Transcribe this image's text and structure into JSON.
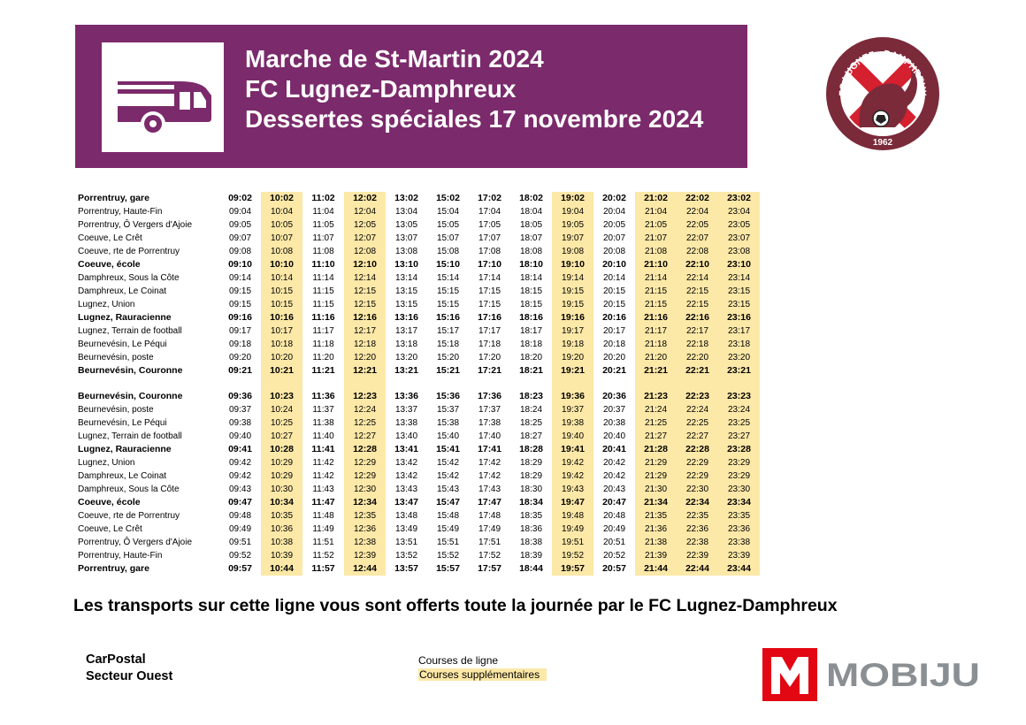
{
  "header": {
    "title_lines": [
      "Marche de St-Martin 2024",
      "FC Lugnez-Damphreux",
      "Dessertes spéciales 17 novembre 2024"
    ],
    "bus_icon": "bus-icon"
  },
  "club_logo": {
    "text": "FC LUGNEZ - DAMPHREUX",
    "year": "1962",
    "icon": "squirrel-football-crest"
  },
  "colors": {
    "header_bg": "#7b2a6b",
    "highlight": "#fce8a7",
    "mobiju_red": "#e30613",
    "mobiju_grey": "#8a8f93"
  },
  "timetable": {
    "highlight_columns": [
      1,
      3,
      8,
      10,
      11,
      12
    ],
    "outbound": [
      {
        "stop": "Porrentruy, gare",
        "bold": true,
        "times": [
          "09:02",
          "10:02",
          "11:02",
          "12:02",
          "13:02",
          "15:02",
          "17:02",
          "18:02",
          "19:02",
          "20:02",
          "21:02",
          "22:02",
          "23:02"
        ]
      },
      {
        "stop": "Porrentruy, Haute-Fin",
        "bold": false,
        "times": [
          "09:04",
          "10:04",
          "11:04",
          "12:04",
          "13:04",
          "15:04",
          "17:04",
          "18:04",
          "19:04",
          "20:04",
          "21:04",
          "22:04",
          "23:04"
        ]
      },
      {
        "stop": "Porrentruy, Ô Vergers d'Ajoie",
        "bold": false,
        "times": [
          "09:05",
          "10:05",
          "11:05",
          "12:05",
          "13:05",
          "15:05",
          "17:05",
          "18:05",
          "19:05",
          "20:05",
          "21:05",
          "22:05",
          "23:05"
        ]
      },
      {
        "stop": "Coeuve, Le Crêt",
        "bold": false,
        "times": [
          "09:07",
          "10:07",
          "11:07",
          "12:07",
          "13:07",
          "15:07",
          "17:07",
          "18:07",
          "19:07",
          "20:07",
          "21:07",
          "22:07",
          "23:07"
        ]
      },
      {
        "stop": "Coeuve, rte de Porrentruy",
        "bold": false,
        "times": [
          "09:08",
          "10:08",
          "11:08",
          "12:08",
          "13:08",
          "15:08",
          "17:08",
          "18:08",
          "19:08",
          "20:08",
          "21:08",
          "22:08",
          "23:08"
        ]
      },
      {
        "stop": "Coeuve, école",
        "bold": true,
        "times": [
          "09:10",
          "10:10",
          "11:10",
          "12:10",
          "13:10",
          "15:10",
          "17:10",
          "18:10",
          "19:10",
          "20:10",
          "21:10",
          "22:10",
          "23:10"
        ]
      },
      {
        "stop": "Damphreux, Sous la Côte",
        "bold": false,
        "times": [
          "09:14",
          "10:14",
          "11:14",
          "12:14",
          "13:14",
          "15:14",
          "17:14",
          "18:14",
          "19:14",
          "20:14",
          "21:14",
          "22:14",
          "23:14"
        ]
      },
      {
        "stop": "Damphreux, Le Coinat",
        "bold": false,
        "times": [
          "09:15",
          "10:15",
          "11:15",
          "12:15",
          "13:15",
          "15:15",
          "17:15",
          "18:15",
          "19:15",
          "20:15",
          "21:15",
          "22:15",
          "23:15"
        ]
      },
      {
        "stop": "Lugnez, Union",
        "bold": false,
        "times": [
          "09:15",
          "10:15",
          "11:15",
          "12:15",
          "13:15",
          "15:15",
          "17:15",
          "18:15",
          "19:15",
          "20:15",
          "21:15",
          "22:15",
          "23:15"
        ]
      },
      {
        "stop": "Lugnez, Rauracienne",
        "bold": true,
        "times": [
          "09:16",
          "10:16",
          "11:16",
          "12:16",
          "13:16",
          "15:16",
          "17:16",
          "18:16",
          "19:16",
          "20:16",
          "21:16",
          "22:16",
          "23:16"
        ]
      },
      {
        "stop": "Lugnez, Terrain de football",
        "bold": false,
        "times": [
          "09:17",
          "10:17",
          "11:17",
          "12:17",
          "13:17",
          "15:17",
          "17:17",
          "18:17",
          "19:17",
          "20:17",
          "21:17",
          "22:17",
          "23:17"
        ]
      },
      {
        "stop": "Beurnevésin, Le Péqui",
        "bold": false,
        "times": [
          "09:18",
          "10:18",
          "11:18",
          "12:18",
          "13:18",
          "15:18",
          "17:18",
          "18:18",
          "19:18",
          "20:18",
          "21:18",
          "22:18",
          "23:18"
        ]
      },
      {
        "stop": "Beurnevésin, poste",
        "bold": false,
        "times": [
          "09:20",
          "10:20",
          "11:20",
          "12:20",
          "13:20",
          "15:20",
          "17:20",
          "18:20",
          "19:20",
          "20:20",
          "21:20",
          "22:20",
          "23:20"
        ]
      },
      {
        "stop": "Beurnevésin, Couronne",
        "bold": true,
        "times": [
          "09:21",
          "10:21",
          "11:21",
          "12:21",
          "13:21",
          "15:21",
          "17:21",
          "18:21",
          "19:21",
          "20:21",
          "21:21",
          "22:21",
          "23:21"
        ]
      }
    ],
    "return": [
      {
        "stop": "Beurnevésin, Couronne",
        "bold": true,
        "times": [
          "09:36",
          "10:23",
          "11:36",
          "12:23",
          "13:36",
          "15:36",
          "17:36",
          "18:23",
          "19:36",
          "20:36",
          "21:23",
          "22:23",
          "23:23"
        ]
      },
      {
        "stop": "Beurnevésin, poste",
        "bold": false,
        "times": [
          "09:37",
          "10:24",
          "11:37",
          "12:24",
          "13:37",
          "15:37",
          "17:37",
          "18:24",
          "19:37",
          "20:37",
          "21:24",
          "22:24",
          "23:24"
        ]
      },
      {
        "stop": "Beurnevésin, Le Péqui",
        "bold": false,
        "times": [
          "09:38",
          "10:25",
          "11:38",
          "12:25",
          "13:38",
          "15:38",
          "17:38",
          "18:25",
          "19:38",
          "20:38",
          "21:25",
          "22:25",
          "23:25"
        ]
      },
      {
        "stop": "Lugnez, Terrain de football",
        "bold": false,
        "times": [
          "09:40",
          "10:27",
          "11:40",
          "12:27",
          "13:40",
          "15:40",
          "17:40",
          "18:27",
          "19:40",
          "20:40",
          "21:27",
          "22:27",
          "23:27"
        ]
      },
      {
        "stop": "Lugnez, Rauracienne",
        "bold": true,
        "times": [
          "09:41",
          "10:28",
          "11:41",
          "12:28",
          "13:41",
          "15:41",
          "17:41",
          "18:28",
          "19:41",
          "20:41",
          "21:28",
          "22:28",
          "23:28"
        ]
      },
      {
        "stop": "Lugnez, Union",
        "bold": false,
        "times": [
          "09:42",
          "10:29",
          "11:42",
          "12:29",
          "13:42",
          "15:42",
          "17:42",
          "18:29",
          "19:42",
          "20:42",
          "21:29",
          "22:29",
          "23:29"
        ]
      },
      {
        "stop": "Damphreux, Le Coinat",
        "bold": false,
        "times": [
          "09:42",
          "10:29",
          "11:42",
          "12:29",
          "13:42",
          "15:42",
          "17:42",
          "18:29",
          "19:42",
          "20:42",
          "21:29",
          "22:29",
          "23:29"
        ]
      },
      {
        "stop": "Damphreux, Sous la Côte",
        "bold": false,
        "times": [
          "09:43",
          "10:30",
          "11:43",
          "12:30",
          "13:43",
          "15:43",
          "17:43",
          "18:30",
          "19:43",
          "20:43",
          "21:30",
          "22:30",
          "23:30"
        ]
      },
      {
        "stop": "Coeuve, école",
        "bold": true,
        "times": [
          "09:47",
          "10:34",
          "11:47",
          "12:34",
          "13:47",
          "15:47",
          "17:47",
          "18:34",
          "19:47",
          "20:47",
          "21:34",
          "22:34",
          "23:34"
        ]
      },
      {
        "stop": "Coeuve, rte de Porrentruy",
        "bold": false,
        "times": [
          "09:48",
          "10:35",
          "11:48",
          "12:35",
          "13:48",
          "15:48",
          "17:48",
          "18:35",
          "19:48",
          "20:48",
          "21:35",
          "22:35",
          "23:35"
        ]
      },
      {
        "stop": "Coeuve, Le Crêt",
        "bold": false,
        "times": [
          "09:49",
          "10:36",
          "11:49",
          "12:36",
          "13:49",
          "15:49",
          "17:49",
          "18:36",
          "19:49",
          "20:49",
          "21:36",
          "22:36",
          "23:36"
        ]
      },
      {
        "stop": "Porrentruy, Ô Vergers d'Ajoie",
        "bold": false,
        "times": [
          "09:51",
          "10:38",
          "11:51",
          "12:38",
          "13:51",
          "15:51",
          "17:51",
          "18:38",
          "19:51",
          "20:51",
          "21:38",
          "22:38",
          "23:38"
        ]
      },
      {
        "stop": "Porrentruy, Haute-Fin",
        "bold": false,
        "times": [
          "09:52",
          "10:39",
          "11:52",
          "12:39",
          "13:52",
          "15:52",
          "17:52",
          "18:39",
          "19:52",
          "20:52",
          "21:39",
          "22:39",
          "23:39"
        ]
      },
      {
        "stop": "Porrentruy, gare",
        "bold": true,
        "times": [
          "09:57",
          "10:44",
          "11:57",
          "12:44",
          "13:57",
          "15:57",
          "17:57",
          "18:44",
          "19:57",
          "20:57",
          "21:44",
          "22:44",
          "23:44"
        ]
      }
    ]
  },
  "notice": "Les transports sur cette ligne vous sont offerts toute la journée par le FC Lugnez-Damphreux",
  "operator": {
    "line1": "CarPostal",
    "line2": "Secteur Ouest"
  },
  "legend": {
    "regular": "Courses de ligne",
    "extra": "Courses supplémentaires"
  },
  "mobiju": {
    "text": "MOBIJU",
    "icon": "mobiju-m-logo"
  }
}
